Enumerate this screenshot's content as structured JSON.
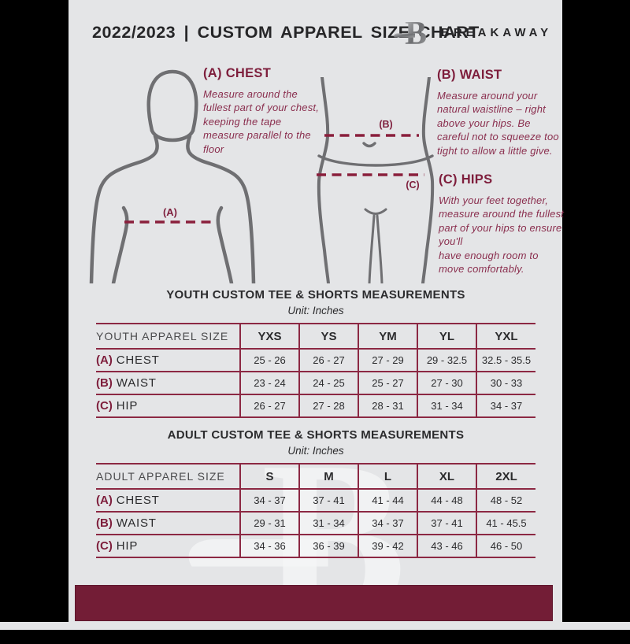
{
  "header": {
    "title": "2022/2023 | CUSTOM APPAREL SIZE CHART",
    "brand": "BREAKAWAY",
    "logo_icon": "breakaway-b-logo"
  },
  "colors": {
    "maroon_footer": "#731d36",
    "maroon_border": "#8c2843",
    "maroon_text": "#7e1e3c",
    "page_background": "#e4e5e7",
    "figure_stroke": "#6f6f72",
    "side_bars": "#000000"
  },
  "sections": {
    "chest": {
      "marker": "(A)",
      "heading": "(A) CHEST",
      "body": "Measure around the fullest part of your chest, keeping the tape measure parallel to the floor"
    },
    "waist": {
      "marker": "(B)",
      "heading": "(B) WAIST",
      "body": "Measure around your natural waistline – right above your hips. Be careful not to squeeze too tight to allow a little give."
    },
    "hips": {
      "marker": "(C)",
      "heading": "(C) HIPS",
      "body": "With your feet together, measure around the fullest part of your hips to ensure you'll\nhave enough room to move comfortably."
    }
  },
  "youth_table": {
    "title": "YOUTH CUSTOM TEE & SHORTS MEASUREMENTS",
    "unit": "Unit: Inches",
    "size_label": "YOUTH APPAREL SIZE",
    "columns": [
      "YXS",
      "YS",
      "YM",
      "YL",
      "YXL"
    ],
    "rows": [
      {
        "prefix": "(A)",
        "label": "CHEST",
        "values": [
          "25 - 26",
          "26 - 27",
          "27 - 29",
          "29 - 32.5",
          "32.5 - 35.5"
        ]
      },
      {
        "prefix": "(B)",
        "label": "WAIST",
        "values": [
          "23 - 24",
          "24 - 25",
          "25 - 27",
          "27 - 30",
          "30 - 33"
        ]
      },
      {
        "prefix": "(C)",
        "label": "HIP",
        "values": [
          "26 - 27",
          "27 - 28",
          "28 - 31",
          "31 - 34",
          "34 - 37"
        ]
      }
    ]
  },
  "adult_table": {
    "title": "ADULT CUSTOM TEE & SHORTS MEASUREMENTS",
    "unit": "Unit: Inches",
    "size_label": "ADULT APPAREL SIZE",
    "columns": [
      "S",
      "M",
      "L",
      "XL",
      "2XL"
    ],
    "rows": [
      {
        "prefix": "(A)",
        "label": "CHEST",
        "values": [
          "34 - 37",
          "37 - 41",
          "41 - 44",
          "44 - 48",
          "48 - 52"
        ]
      },
      {
        "prefix": "(B)",
        "label": "WAIST",
        "values": [
          "29 - 31",
          "31 - 34",
          "34 - 37",
          "37 - 41",
          "41 - 45.5"
        ]
      },
      {
        "prefix": "(C)",
        "label": "HIP",
        "values": [
          "34 - 36",
          "36 - 39",
          "39 - 42",
          "43 - 46",
          "46 - 50"
        ]
      }
    ]
  }
}
